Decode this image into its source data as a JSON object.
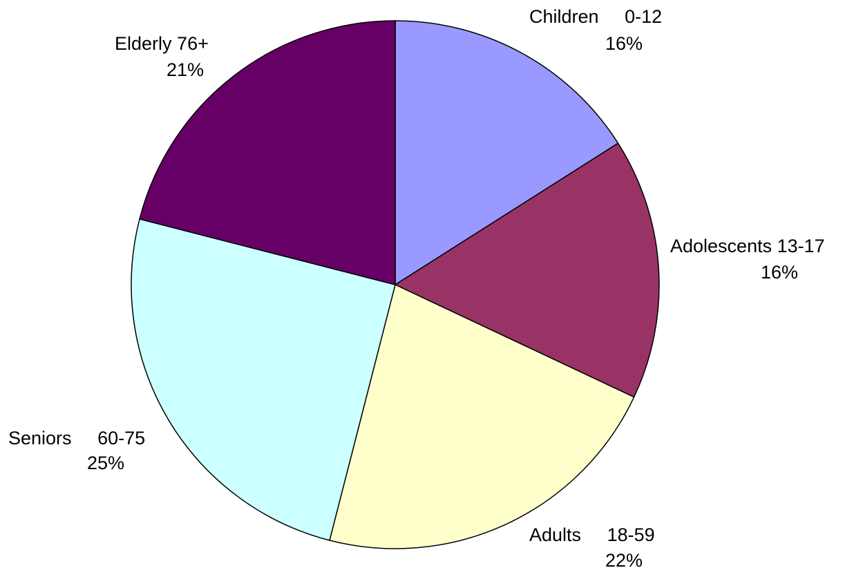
{
  "chart_data": {
    "type": "pie",
    "title": "",
    "start_angle_deg": 0,
    "direction": "clockwise",
    "slices": [
      {
        "label_name": "Children",
        "label_range": "0-12",
        "value": 16,
        "pct_label": "16%",
        "color": "#9999FF"
      },
      {
        "label_name": "Adolescents",
        "label_range": "13-17",
        "value": 16,
        "pct_label": "16%",
        "color": "#993366"
      },
      {
        "label_name": "Adults",
        "label_range": "18-59",
        "value": 22,
        "pct_label": "22%",
        "color": "#FFFFCC"
      },
      {
        "label_name": "Seniors",
        "label_range": "60-75",
        "value": 25,
        "pct_label": "25%",
        "color": "#CCFFFF"
      },
      {
        "label_name": "Elderly",
        "label_range": "76+",
        "value": 21,
        "pct_label": "21%",
        "color": "#660066"
      }
    ]
  }
}
